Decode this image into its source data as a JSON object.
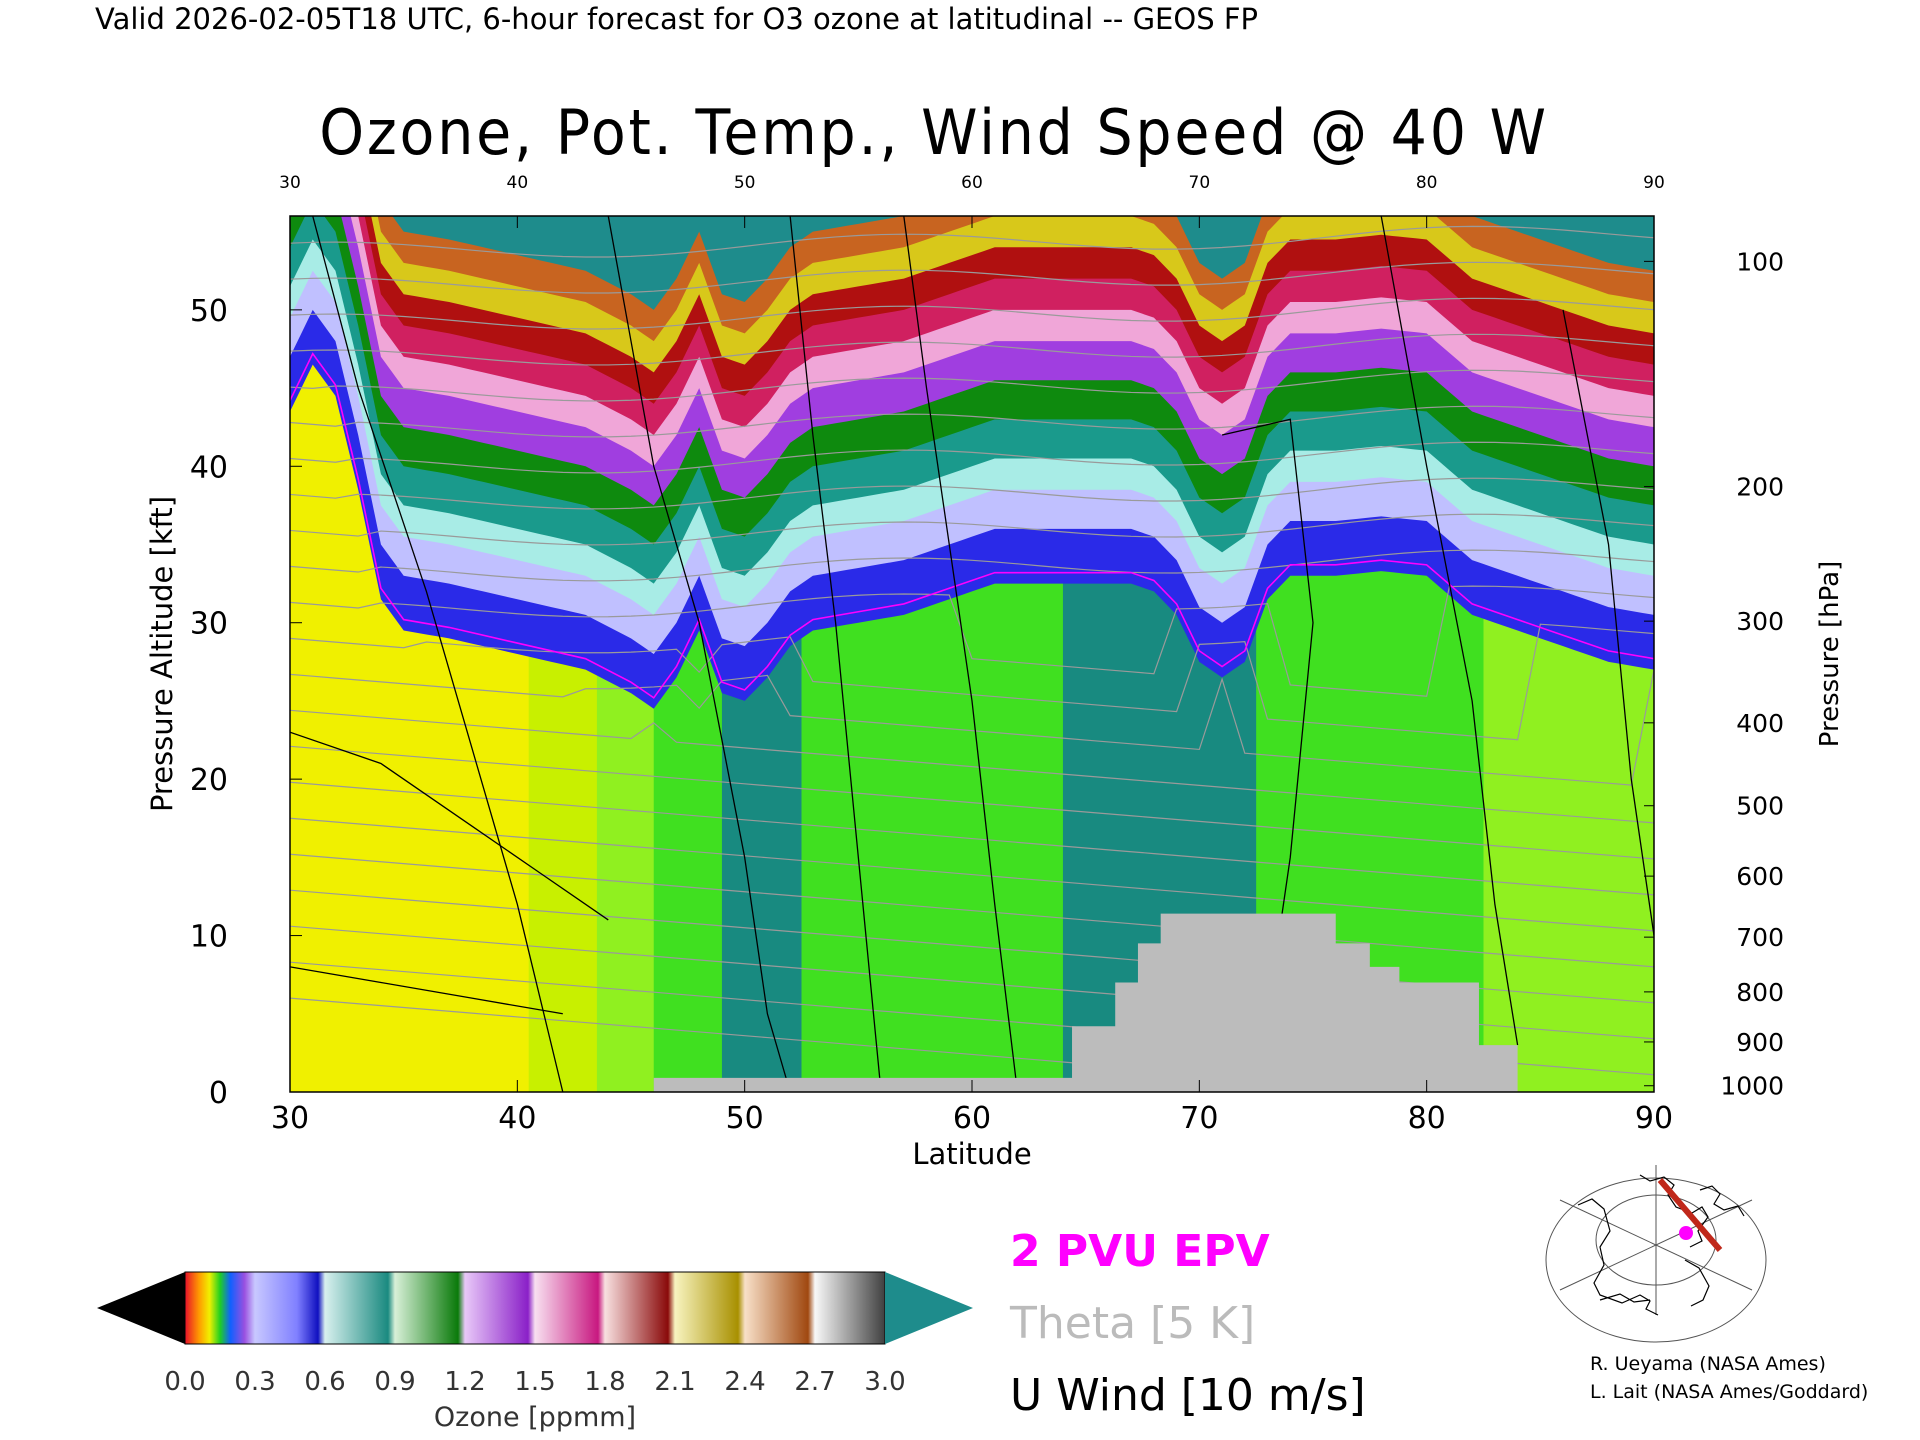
{
  "header": {
    "valid_line": "Valid 2026-02-05T18 UTC, 6-hour forecast for O3 ozone at latitudinal -- GEOS FP"
  },
  "chart_data": {
    "type": "heatmap",
    "title": "Ozone, Pot. Temp., Wind Speed @ 40 W",
    "xlabel": "Latitude",
    "ylabel_left": "Pressure Altitude [kft]",
    "ylabel_right": "Pressure [hPa]",
    "xlim": [
      30,
      90
    ],
    "ylim": [
      0,
      56
    ],
    "x_ticks": [
      30,
      40,
      50,
      60,
      70,
      80,
      90
    ],
    "y_ticks_left": [
      0,
      10,
      20,
      30,
      40,
      50
    ],
    "y_ticks_right": [
      {
        "label": "100",
        "kft": 53.1
      },
      {
        "label": "200",
        "kft": 38.7
      },
      {
        "label": "300",
        "kft": 30.1
      },
      {
        "label": "400",
        "kft": 23.6
      },
      {
        "label": "500",
        "kft": 18.3
      },
      {
        "label": "600",
        "kft": 13.8
      },
      {
        "label": "700",
        "kft": 9.9
      },
      {
        "label": "800",
        "kft": 6.4
      },
      {
        "label": "900",
        "kft": 3.2
      },
      {
        "label": "1000",
        "kft": 0.4
      }
    ],
    "tropopause_kft": [
      [
        30,
        45
      ],
      [
        31,
        48
      ],
      [
        32,
        46
      ],
      [
        33,
        40
      ],
      [
        34,
        33
      ],
      [
        35,
        31
      ],
      [
        37,
        30.5
      ],
      [
        40,
        29.5
      ],
      [
        43,
        28.5
      ],
      [
        45,
        27
      ],
      [
        46,
        26
      ],
      [
        47,
        28
      ],
      [
        48,
        31
      ],
      [
        49,
        27
      ],
      [
        50,
        26.5
      ],
      [
        51,
        28
      ],
      [
        52,
        30
      ],
      [
        53,
        31
      ],
      [
        55,
        31.5
      ],
      [
        57,
        32
      ],
      [
        59,
        33
      ],
      [
        61,
        34
      ],
      [
        63,
        34
      ],
      [
        65,
        34
      ],
      [
        67,
        34
      ],
      [
        68,
        33.5
      ],
      [
        69,
        32
      ],
      [
        70,
        29
      ],
      [
        71,
        28
      ],
      [
        72,
        29
      ],
      [
        73,
        33
      ],
      [
        74,
        34.5
      ],
      [
        76,
        34.5
      ],
      [
        78,
        34.8
      ],
      [
        80,
        34.5
      ],
      [
        82,
        32
      ],
      [
        84,
        31
      ],
      [
        86,
        30
      ],
      [
        88,
        29
      ],
      [
        90,
        28.5
      ]
    ],
    "ozone_isopleths_kft": [
      {
        "ppmm": 0.3,
        "color": "#2a2ae8",
        "lift": 0
      },
      {
        "ppmm": 0.45,
        "color": "#c0c0ff",
        "lift": 3.5
      },
      {
        "ppmm": 0.6,
        "color": "#a8ece6",
        "lift": 6
      },
      {
        "ppmm": 0.75,
        "color": "#1a9a8c",
        "lift": 8
      },
      {
        "ppmm": 0.9,
        "color": "#0e8a0e",
        "lift": 10.5
      },
      {
        "ppmm": 1.2,
        "color": "#a03ee0",
        "lift": 13
      },
      {
        "ppmm": 1.5,
        "color": "#f0a6d8",
        "lift": 15.5
      },
      {
        "ppmm": 1.8,
        "color": "#d02060",
        "lift": 17.5
      },
      {
        "ppmm": 2.1,
        "color": "#b01010",
        "lift": 19.5
      },
      {
        "ppmm": 2.4,
        "color": "#d8c81a",
        "lift": 21.5
      },
      {
        "ppmm": 2.7,
        "color": "#c86420",
        "lift": 23.5
      },
      {
        "ppmm": 3.0,
        "color": "#1e8c8c",
        "lift": 25.5
      }
    ],
    "lower_troposphere_ppmm": [
      [
        30,
        0.2
      ],
      [
        35,
        0.21
      ],
      [
        38,
        0.22
      ],
      [
        42,
        0.19
      ],
      [
        45,
        0.15
      ],
      [
        48,
        0.12
      ],
      [
        50,
        0.1
      ],
      [
        55,
        0.12
      ],
      [
        60,
        0.14
      ],
      [
        65,
        0.1
      ],
      [
        70,
        0.1
      ],
      [
        75,
        0.12
      ],
      [
        80,
        0.12
      ],
      [
        85,
        0.16
      ],
      [
        90,
        0.14
      ]
    ],
    "terrain_kft": [
      [
        46,
        0.9
      ],
      [
        63.2,
        0.9
      ],
      [
        64.4,
        0.9
      ],
      [
        64.4,
        4.2
      ],
      [
        66.3,
        4.2
      ],
      [
        66.3,
        7
      ],
      [
        67.3,
        7
      ],
      [
        67.3,
        9.5
      ],
      [
        68.3,
        9.5
      ],
      [
        68.3,
        11.4
      ],
      [
        76,
        11.4
      ],
      [
        76,
        9.5
      ],
      [
        77.5,
        9.5
      ],
      [
        77.5,
        8
      ],
      [
        78.8,
        8
      ],
      [
        78.8,
        7
      ],
      [
        82.3,
        7
      ],
      [
        82.3,
        3
      ],
      [
        84,
        3
      ],
      [
        84,
        0
      ]
    ],
    "colorbar": {
      "label": "Ozone [ppmm]",
      "tick_labels": [
        "0.0",
        "0.3",
        "0.6",
        "0.9",
        "1.2",
        "1.5",
        "1.8",
        "2.1",
        "2.4",
        "2.7",
        "3.0"
      ],
      "range": [
        0.0,
        3.0
      ]
    }
  },
  "legend": {
    "epv": {
      "label": "2 PVU EPV",
      "color": "#ff00ff"
    },
    "theta": {
      "label": "Theta [5 K]",
      "color": "#bbbbbb"
    },
    "wind": {
      "label": "U Wind [10 m/s]",
      "color": "#000000"
    }
  },
  "map_inset": {
    "track_color": "#c0281a",
    "marker_color": "#ff00ff"
  },
  "credits": {
    "line1": "R. Ueyama (NASA Ames)",
    "line2": "L. Lait (NASA Ames/Goddard)"
  }
}
